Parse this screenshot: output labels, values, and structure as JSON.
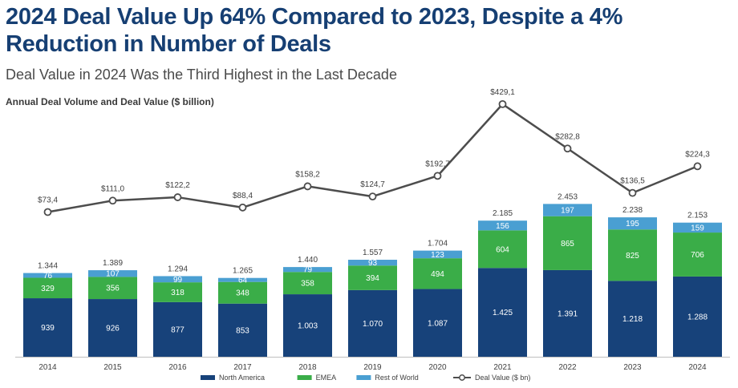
{
  "header": {
    "headline": "2024 Deal Value Up 64% Compared to 2023, Despite a 4% Reduction in Number of Deals",
    "subtitle": "Deal Value in 2024 Was the Third Highest in the Last Decade"
  },
  "chart_data": {
    "type": "bar",
    "title": "Annual Deal Volume and Deal Value ($ billion)",
    "categories": [
      "2014",
      "2015",
      "2016",
      "2017",
      "2018",
      "2019",
      "2020",
      "2021",
      "2022",
      "2023",
      "2024"
    ],
    "stacked": true,
    "series": [
      {
        "name": "North America",
        "color": "#17427a",
        "labels": [
          "939",
          "926",
          "877",
          "853",
          "1.003",
          "1.070",
          "1.087",
          "1.425",
          "1.391",
          "1.218",
          "1.288"
        ],
        "values": [
          939,
          926,
          877,
          853,
          1003,
          1070,
          1087,
          1425,
          1391,
          1218,
          1288
        ]
      },
      {
        "name": "EMEA",
        "color": "#3aad48",
        "labels": [
          "329",
          "356",
          "318",
          "348",
          "358",
          "394",
          "494",
          "604",
          "865",
          "825",
          "706"
        ],
        "values": [
          329,
          356,
          318,
          348,
          358,
          394,
          494,
          604,
          865,
          825,
          706
        ]
      },
      {
        "name": "Rest of World",
        "color": "#4a9fd2",
        "labels": [
          "76",
          "107",
          "99",
          "64",
          "79",
          "93",
          "123",
          "156",
          "197",
          "195",
          "159"
        ],
        "values": [
          76,
          107,
          99,
          64,
          79,
          93,
          123,
          156,
          197,
          195,
          159
        ]
      }
    ],
    "totals": {
      "labels": [
        "1.344",
        "1.389",
        "1.294",
        "1.265",
        "1.440",
        "1.557",
        "1.704",
        "2.185",
        "2.453",
        "2.238",
        "2.153"
      ],
      "values": [
        1344,
        1389,
        1294,
        1265,
        1440,
        1557,
        1704,
        2185,
        2453,
        2238,
        2153
      ]
    },
    "line": {
      "name": "Deal Value ($ bn)",
      "color": "#4d4d4d",
      "labels": [
        "$73,4",
        "$111,0",
        "$122,2",
        "$88,4",
        "$158,2",
        "$124,7",
        "$192,7",
        "$429,1",
        "$282,8",
        "$136,5",
        "$224,3"
      ],
      "values": [
        73.4,
        111.0,
        122.2,
        88.4,
        158.2,
        124.7,
        192.7,
        429.1,
        282.8,
        136.5,
        224.3
      ]
    },
    "legend_position": "bottom",
    "grid": false
  }
}
